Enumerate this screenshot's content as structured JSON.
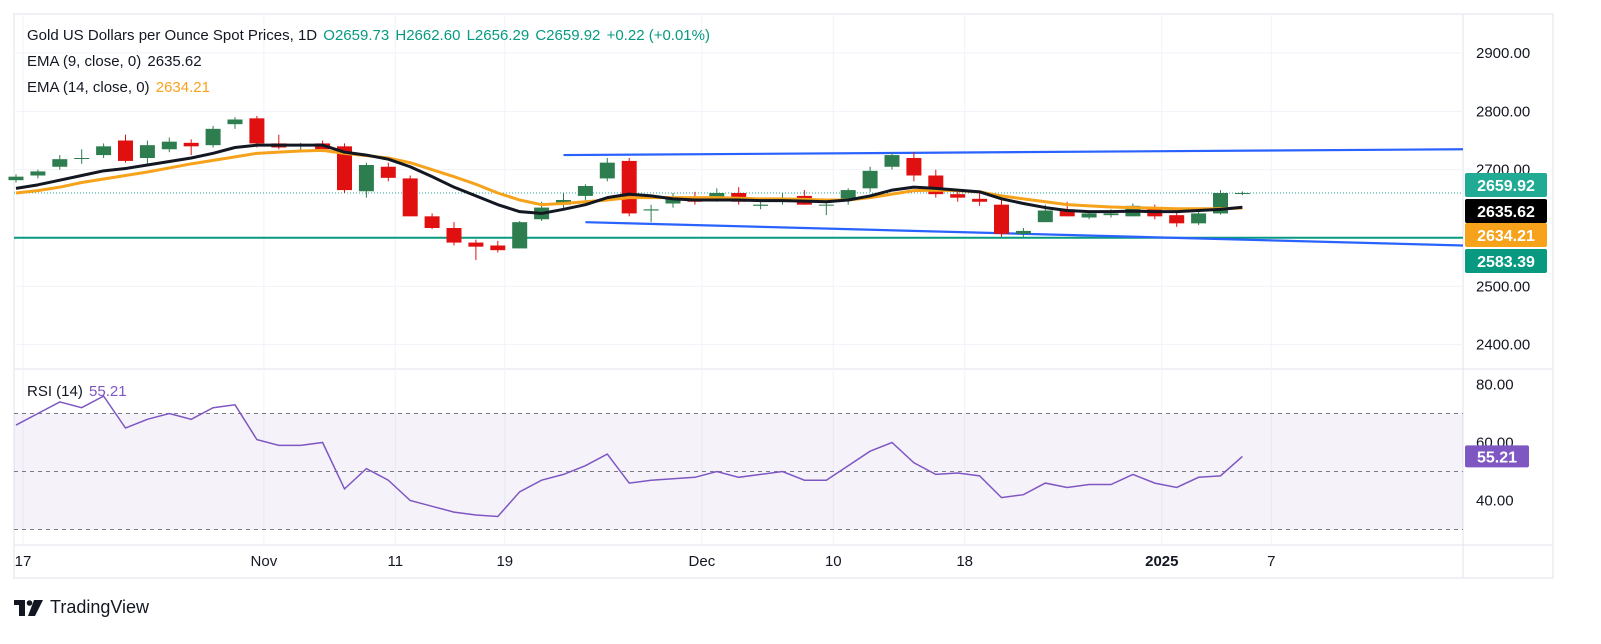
{
  "chart_data": {
    "type": "candlestick",
    "symbol_title": "Gold US Dollars per Ounce Spot Prices, 1D",
    "ohlc": {
      "open": "O2659.73",
      "high": "H2662.60",
      "low": "L2656.29",
      "close": "C2659.92",
      "change": "+0.22 (+0.01%)"
    },
    "indicators": [
      {
        "label": "EMA (9, close, 0)",
        "value": "2635.62",
        "color": "#131722"
      },
      {
        "label": "EMA (14, close, 0)",
        "value": "2634.21",
        "color": "#f7a21b"
      }
    ],
    "price_axis": {
      "ticks": [
        "2900.00",
        "2800.00",
        "2700.00",
        "2500.00",
        "2400.00"
      ],
      "ylim": [
        2360,
        2960
      ]
    },
    "price_badges": [
      {
        "text": "2659.92",
        "value": 2659.92,
        "bg": "#22ab94"
      },
      {
        "text": "2635.62",
        "value": 2635.62,
        "bg": "#000000"
      },
      {
        "text": "2634.21",
        "value": 2634.21,
        "bg": "#f7a21b"
      },
      {
        "text": "2583.39",
        "value": 2583.39,
        "bg": "#089981"
      }
    ],
    "horizontal_line": {
      "value": 2583.39,
      "color": "#089981"
    },
    "trend_lines": [
      {
        "from": [
          25,
          2725
        ],
        "to": [
          84,
          2735
        ],
        "color": "#2962ff"
      },
      {
        "from": [
          26,
          2610
        ],
        "to": [
          84,
          2570
        ],
        "color": "#2962ff"
      }
    ],
    "x_axis": {
      "ticks": [
        {
          "label": "17",
          "i": 0
        },
        {
          "label": "Nov",
          "i": 11
        },
        {
          "label": "11",
          "i": 17
        },
        {
          "label": "19",
          "i": 22
        },
        {
          "label": "Dec",
          "i": 31
        },
        {
          "label": "10",
          "i": 37
        },
        {
          "label": "18",
          "i": 43
        },
        {
          "label": "2025",
          "i": 52,
          "bold": true
        },
        {
          "label": "7",
          "i": 57
        }
      ]
    },
    "candles": [
      [
        2682,
        2692,
        2678,
        2688
      ],
      [
        2690,
        2700,
        2685,
        2697
      ],
      [
        2705,
        2725,
        2700,
        2718
      ],
      [
        2720,
        2735,
        2710,
        2720
      ],
      [
        2725,
        2745,
        2720,
        2740
      ],
      [
        2750,
        2760,
        2712,
        2715
      ],
      [
        2720,
        2750,
        2710,
        2742
      ],
      [
        2735,
        2755,
        2730,
        2748
      ],
      [
        2746,
        2752,
        2725,
        2740
      ],
      [
        2742,
        2775,
        2738,
        2770
      ],
      [
        2778,
        2790,
        2770,
        2786
      ],
      [
        2788,
        2792,
        2738,
        2745
      ],
      [
        2745,
        2760,
        2735,
        2738
      ],
      [
        2740,
        2746,
        2732,
        2744
      ],
      [
        2745,
        2750,
        2730,
        2735
      ],
      [
        2740,
        2745,
        2660,
        2665
      ],
      [
        2663,
        2712,
        2652,
        2708
      ],
      [
        2705,
        2712,
        2680,
        2686
      ],
      [
        2685,
        2690,
        2620,
        2620
      ],
      [
        2620,
        2625,
        2598,
        2600
      ],
      [
        2600,
        2610,
        2570,
        2575
      ],
      [
        2575,
        2580,
        2545,
        2568
      ],
      [
        2570,
        2578,
        2558,
        2562
      ],
      [
        2565,
        2612,
        2565,
        2610
      ],
      [
        2615,
        2645,
        2612,
        2635
      ],
      [
        2640,
        2660,
        2632,
        2648
      ],
      [
        2655,
        2675,
        2645,
        2672
      ],
      [
        2685,
        2720,
        2680,
        2712
      ],
      [
        2715,
        2720,
        2620,
        2625
      ],
      [
        2630,
        2640,
        2610,
        2632
      ],
      [
        2642,
        2660,
        2635,
        2650
      ],
      [
        2648,
        2662,
        2640,
        2645
      ],
      [
        2652,
        2668,
        2645,
        2660
      ],
      [
        2660,
        2670,
        2640,
        2645
      ],
      [
        2638,
        2650,
        2632,
        2640
      ],
      [
        2645,
        2660,
        2640,
        2652
      ],
      [
        2655,
        2665,
        2640,
        2640
      ],
      [
        2640,
        2650,
        2622,
        2640
      ],
      [
        2650,
        2668,
        2640,
        2665
      ],
      [
        2668,
        2705,
        2662,
        2698
      ],
      [
        2705,
        2730,
        2700,
        2725
      ],
      [
        2720,
        2730,
        2680,
        2690
      ],
      [
        2690,
        2700,
        2652,
        2658
      ],
      [
        2658,
        2665,
        2645,
        2652
      ],
      [
        2650,
        2662,
        2638,
        2645
      ],
      [
        2640,
        2650,
        2585,
        2590
      ],
      [
        2590,
        2600,
        2585,
        2595
      ],
      [
        2610,
        2640,
        2610,
        2630
      ],
      [
        2632,
        2645,
        2620,
        2620
      ],
      [
        2618,
        2628,
        2615,
        2625
      ],
      [
        2622,
        2632,
        2618,
        2625
      ],
      [
        2620,
        2642,
        2620,
        2638
      ],
      [
        2635,
        2640,
        2615,
        2620
      ],
      [
        2622,
        2630,
        2602,
        2608
      ],
      [
        2608,
        2630,
        2605,
        2625
      ],
      [
        2625,
        2665,
        2623,
        2660
      ],
      [
        2659.73,
        2662.6,
        2656.29,
        2659.92
      ]
    ],
    "ema9": [
      2668,
      2674,
      2682,
      2690,
      2698,
      2702,
      2708,
      2714,
      2720,
      2728,
      2738,
      2742,
      2742,
      2742,
      2742,
      2730,
      2725,
      2718,
      2705,
      2688,
      2670,
      2655,
      2640,
      2628,
      2625,
      2632,
      2640,
      2652,
      2658,
      2655,
      2650,
      2648,
      2648,
      2648,
      2647,
      2647,
      2646,
      2645,
      2648,
      2655,
      2665,
      2670,
      2668,
      2665,
      2662,
      2650,
      2642,
      2635,
      2630,
      2628,
      2628,
      2629,
      2628,
      2628,
      2630,
      2632,
      2635.62
    ],
    "ema14": [
      2660,
      2664,
      2670,
      2678,
      2684,
      2690,
      2696,
      2703,
      2710,
      2716,
      2722,
      2728,
      2730,
      2732,
      2733,
      2728,
      2724,
      2720,
      2712,
      2700,
      2688,
      2675,
      2660,
      2648,
      2640,
      2642,
      2645,
      2648,
      2652,
      2652,
      2652,
      2652,
      2652,
      2651,
      2650,
      2650,
      2649,
      2648,
      2648,
      2652,
      2658,
      2664,
      2665,
      2664,
      2662,
      2655,
      2650,
      2645,
      2640,
      2638,
      2636,
      2635,
      2634,
      2633,
      2633,
      2633,
      2634.21
    ],
    "rsi": {
      "label": "RSI (14)",
      "value": "55.21",
      "color": "#7e57c2",
      "ticks": [
        "80.00",
        "60.00",
        "40.00"
      ],
      "ylim": [
        25,
        85
      ],
      "band": [
        30,
        70
      ],
      "mid": 50,
      "values": [
        66,
        70,
        74,
        72,
        76,
        65,
        68,
        70,
        68,
        72,
        73,
        61,
        59,
        59,
        60,
        44,
        51,
        47,
        40,
        38,
        36,
        35,
        34.5,
        43,
        47,
        49,
        52,
        56,
        46,
        47,
        47.5,
        48,
        50,
        48,
        49,
        50,
        47,
        47,
        52,
        57,
        60,
        53,
        49,
        49.5,
        48.5,
        41,
        42,
        46,
        44.5,
        45.5,
        45.5,
        49,
        46,
        44.5,
        48,
        48.5,
        55.21
      ]
    }
  },
  "watermark": "TradingView"
}
